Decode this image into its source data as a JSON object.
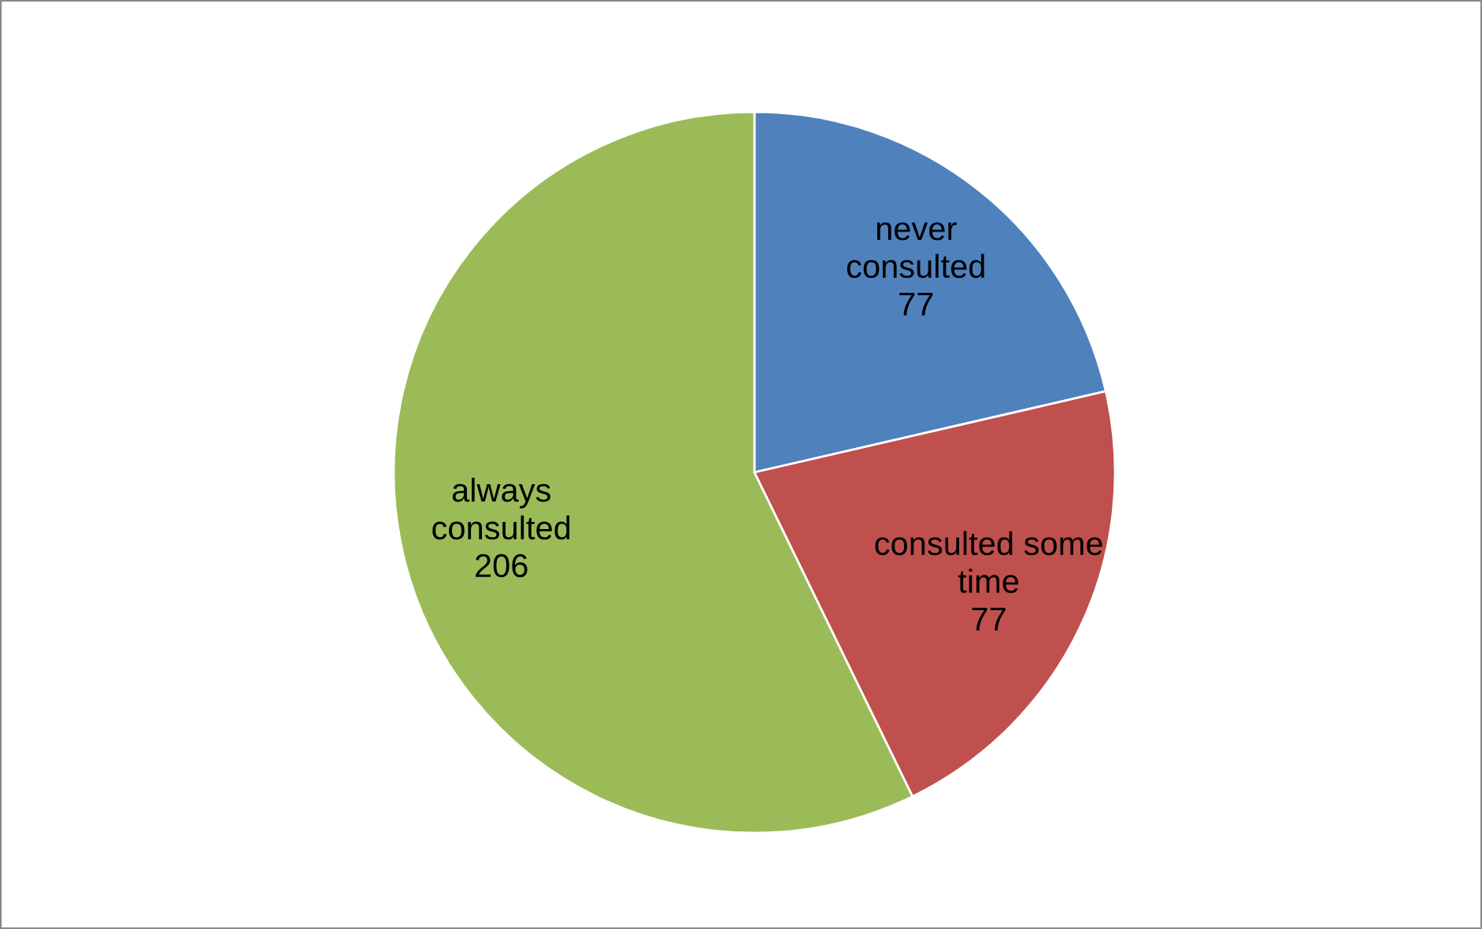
{
  "chart_data": {
    "type": "pie",
    "categories": [
      "never consulted",
      "consulted some time",
      "always consulted"
    ],
    "values": [
      77,
      77,
      206
    ],
    "colors": [
      "#4f81bd",
      "#c0504d",
      "#9bbb59"
    ],
    "data_labels": true,
    "legend": false
  }
}
